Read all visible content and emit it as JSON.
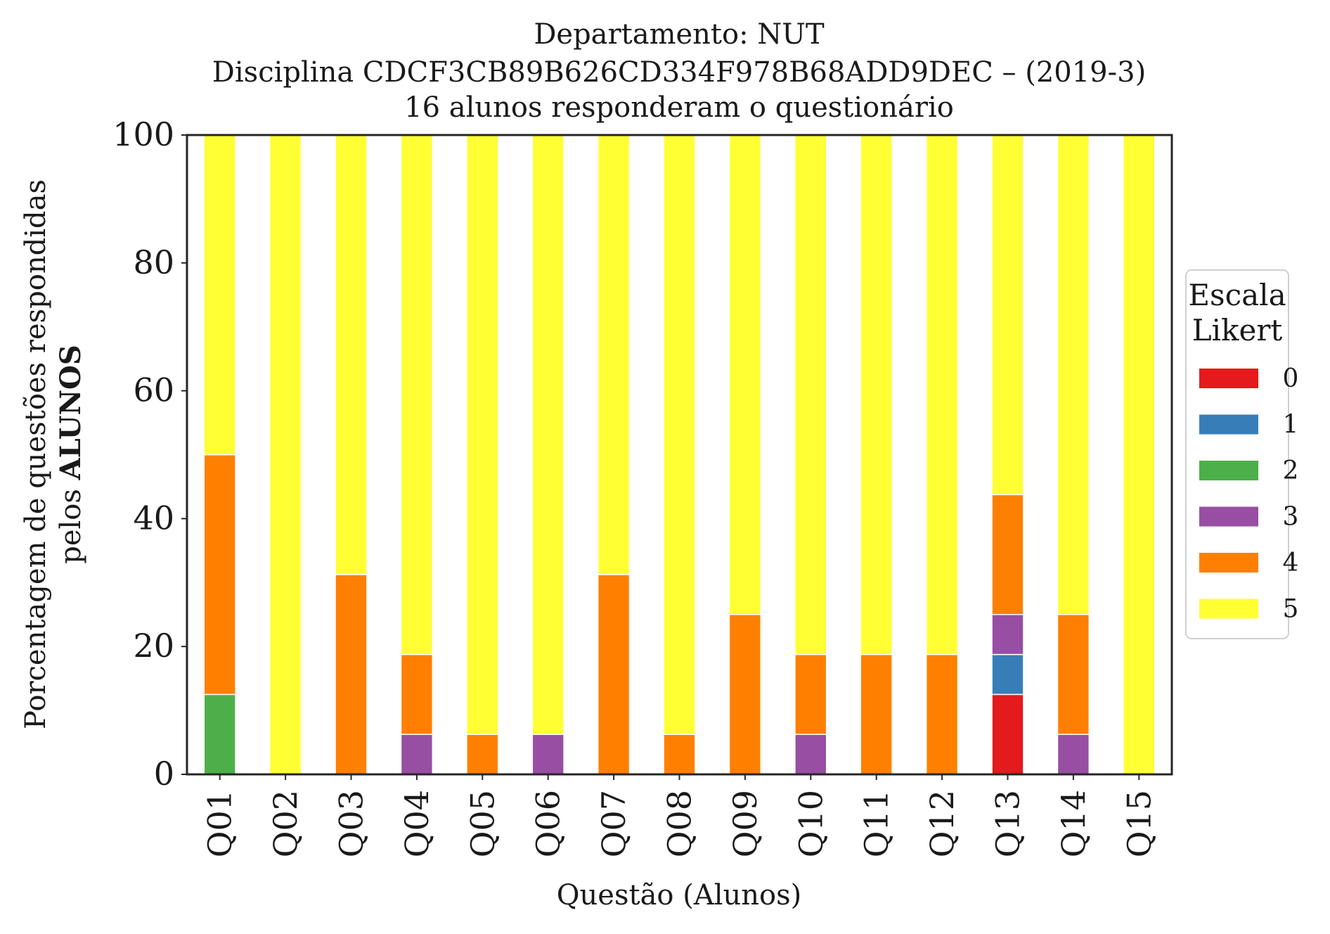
{
  "chart_data": {
    "type": "bar",
    "stacked": true,
    "title": [
      "Departamento: NUT",
      "Disciplina CDCF3CB89B626CD334F978B68ADD9DEC – (2019-3)",
      "16 alunos responderam o questionário"
    ],
    "xlabel": "Questão (Alunos)",
    "ylabel": [
      "Porcentagem de questões respondidas",
      "pelos ",
      "ALUNOS"
    ],
    "ylim": [
      0,
      100
    ],
    "yticks": [
      "0",
      "20",
      "40",
      "60",
      "80",
      "100"
    ],
    "categories": [
      "Q01",
      "Q02",
      "Q03",
      "Q04",
      "Q05",
      "Q06",
      "Q07",
      "Q08",
      "Q09",
      "Q10",
      "Q11",
      "Q12",
      "Q13",
      "Q14",
      "Q15"
    ],
    "grid": false,
    "legend": {
      "title": [
        "Escala",
        "Likert"
      ],
      "placement": "right",
      "entries": [
        "0",
        "1",
        "2",
        "3",
        "4",
        "5"
      ]
    },
    "series": [
      {
        "name": "0",
        "color": "#e41a1c",
        "values": [
          0,
          0,
          0,
          0,
          0,
          0,
          0,
          0,
          0,
          0,
          0,
          0,
          12.5,
          0,
          0
        ]
      },
      {
        "name": "1",
        "color": "#377eb8",
        "values": [
          0,
          0,
          0,
          0,
          0,
          0,
          0,
          0,
          0,
          0,
          0,
          0,
          6.25,
          0,
          0
        ]
      },
      {
        "name": "2",
        "color": "#4daf4a",
        "values": [
          12.5,
          0,
          0,
          0,
          0,
          0,
          0,
          0,
          0,
          0,
          0,
          0,
          0,
          0,
          0
        ]
      },
      {
        "name": "3",
        "color": "#984ea3",
        "values": [
          0,
          0,
          0,
          6.25,
          0,
          6.25,
          0,
          0,
          0,
          6.25,
          0,
          0,
          6.25,
          6.25,
          0
        ]
      },
      {
        "name": "4",
        "color": "#ff7f00",
        "values": [
          37.5,
          0,
          31.25,
          12.5,
          6.25,
          0,
          31.25,
          6.25,
          25,
          12.5,
          18.75,
          18.75,
          18.75,
          18.75,
          0
        ]
      },
      {
        "name": "5",
        "color": "#ffff33",
        "values": [
          50,
          100,
          68.75,
          81.25,
          93.75,
          93.75,
          68.75,
          93.75,
          75,
          81.25,
          81.25,
          81.25,
          56.25,
          75,
          100
        ]
      }
    ]
  }
}
